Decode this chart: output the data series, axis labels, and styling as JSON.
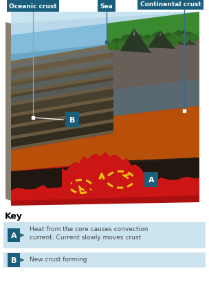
{
  "bg_color": "#ffffff",
  "teal_dark": "#1b5e7b",
  "light_blue_bg": "#b8d8ea",
  "light_blue_sky": "#c8e4f0",
  "light_blue_panel": "#cce4f0",
  "red_magma": "#cc1515",
  "red_magma_dark": "#aa1010",
  "orange_layer": "#b8500a",
  "dark_brown": "#3a2010",
  "gray_dark": "#4a4840",
  "gray_mid": "#6a6860",
  "olive_brown": "#6a5a40",
  "blue_ocean_light": "#7ab8d8",
  "blue_ocean_mid": "#5898b8",
  "blue_ocean_dark": "#4888a8",
  "green_land": "#3a8a30",
  "green_dark_tree": "#2a6020",
  "green_mid_tree": "#357028",
  "mountain_col": "#2a3828",
  "snow_col": "#e8f0e8",
  "yellow_arrow": "#f0c010",
  "key_text_color": "#444444",
  "label_A_text": "Heat from the core causes convection\ncurrent. Current slowly moves crust",
  "label_B_text": "New crust forming",
  "key_title": "Key",
  "tag_oceanic": "Oceanic crust",
  "tag_sea": "Sea",
  "tag_continental": "Continental crust",
  "tag_A": "A",
  "tag_B": "B",
  "stripe_colors": [
    "#7a6a50",
    "#6a5c44",
    "#5c5038",
    "#504530",
    "#46402c",
    "#3e3828",
    "#383224",
    "#302c20"
  ]
}
